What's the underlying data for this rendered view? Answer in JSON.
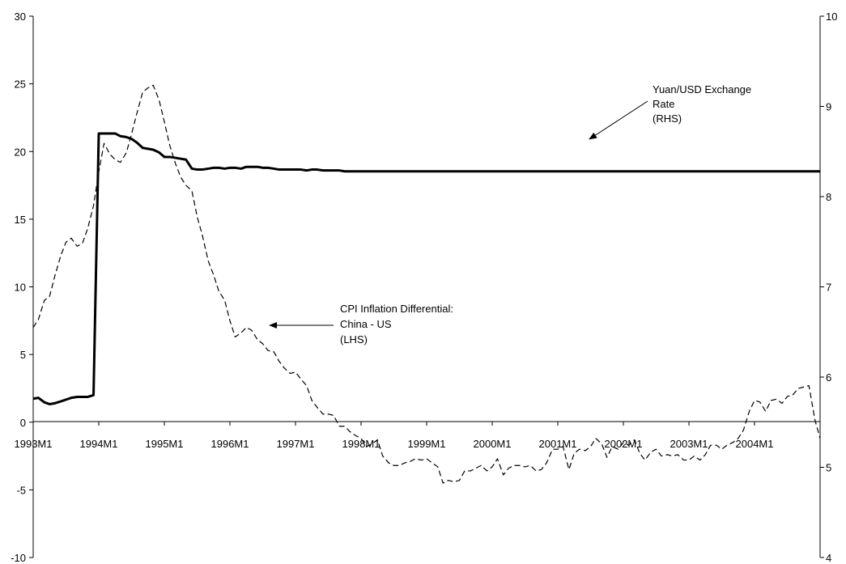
{
  "chart_data": {
    "type": "line",
    "title": "",
    "xlabel": "",
    "ylabel_left": "",
    "ylabel_right": "",
    "x_range": [
      1993.0,
      2005.0
    ],
    "x_ticks": [
      {
        "label": "1993M1",
        "x": 1993
      },
      {
        "label": "1994M1",
        "x": 1994
      },
      {
        "label": "1995M1",
        "x": 1995
      },
      {
        "label": "1996M1",
        "x": 1996
      },
      {
        "label": "1997M1",
        "x": 1997
      },
      {
        "label": "1998M1",
        "x": 1998
      },
      {
        "label": "1999M1",
        "x": 1999
      },
      {
        "label": "2000M1",
        "x": 2000
      },
      {
        "label": "2001M1",
        "x": 2001
      },
      {
        "label": "2002M1",
        "x": 2002
      },
      {
        "label": "2003M1",
        "x": 2003
      },
      {
        "label": "2004M1",
        "x": 2004
      }
    ],
    "y_left": {
      "range": [
        -10,
        30
      ],
      "ticks": [
        -10,
        -5,
        0,
        5,
        10,
        15,
        20,
        25,
        30
      ]
    },
    "y_right": {
      "range": [
        4,
        10
      ],
      "ticks": [
        4,
        5,
        6,
        7,
        8,
        9,
        10
      ]
    },
    "grid": false,
    "series": [
      {
        "axis": "left",
        "style": "dashed",
        "color": "#000000",
        "points": [
          [
            1993.0,
            7.0
          ],
          [
            1993.08,
            7.6
          ],
          [
            1993.17,
            9.0
          ],
          [
            1993.25,
            9.3
          ],
          [
            1993.33,
            10.8
          ],
          [
            1993.42,
            12.3
          ],
          [
            1993.5,
            13.3
          ],
          [
            1993.58,
            13.6
          ],
          [
            1993.67,
            13.0
          ],
          [
            1993.75,
            13.2
          ],
          [
            1993.83,
            14.3
          ],
          [
            1993.92,
            16.0
          ],
          [
            1994.0,
            18.5
          ],
          [
            1994.08,
            20.6
          ],
          [
            1994.17,
            19.8
          ],
          [
            1994.25,
            19.4
          ],
          [
            1994.33,
            19.2
          ],
          [
            1994.42,
            19.9
          ],
          [
            1994.5,
            21.3
          ],
          [
            1994.58,
            22.8
          ],
          [
            1994.67,
            24.4
          ],
          [
            1994.75,
            24.7
          ],
          [
            1994.83,
            24.9
          ],
          [
            1994.92,
            23.8
          ],
          [
            1995.0,
            22.2
          ],
          [
            1995.08,
            20.5
          ],
          [
            1995.17,
            19.1
          ],
          [
            1995.25,
            18.1
          ],
          [
            1995.33,
            17.5
          ],
          [
            1995.42,
            17.1
          ],
          [
            1995.5,
            15.2
          ],
          [
            1995.58,
            13.8
          ],
          [
            1995.67,
            11.9
          ],
          [
            1995.75,
            10.9
          ],
          [
            1995.83,
            9.7
          ],
          [
            1995.92,
            9.0
          ],
          [
            1996.0,
            7.5
          ],
          [
            1996.08,
            6.3
          ],
          [
            1996.17,
            6.6
          ],
          [
            1996.25,
            7.0
          ],
          [
            1996.33,
            6.8
          ],
          [
            1996.42,
            6.1
          ],
          [
            1996.5,
            5.8
          ],
          [
            1996.58,
            5.3
          ],
          [
            1996.67,
            5.2
          ],
          [
            1996.75,
            4.5
          ],
          [
            1996.83,
            4.0
          ],
          [
            1996.92,
            3.6
          ],
          [
            1997.0,
            3.7
          ],
          [
            1997.08,
            3.2
          ],
          [
            1997.17,
            2.7
          ],
          [
            1997.25,
            1.6
          ],
          [
            1997.33,
            1.1
          ],
          [
            1997.42,
            0.6
          ],
          [
            1997.5,
            0.6
          ],
          [
            1997.58,
            0.5
          ],
          [
            1997.67,
            -0.3
          ],
          [
            1997.75,
            -0.3
          ],
          [
            1997.83,
            -0.7
          ],
          [
            1997.92,
            -1.0
          ],
          [
            1998.0,
            -1.2
          ],
          [
            1998.08,
            -1.8
          ],
          [
            1998.17,
            -1.6
          ],
          [
            1998.25,
            -1.3
          ],
          [
            1998.33,
            -2.5
          ],
          [
            1998.42,
            -3.0
          ],
          [
            1998.5,
            -3.2
          ],
          [
            1998.58,
            -3.2
          ],
          [
            1998.67,
            -3.0
          ],
          [
            1998.75,
            -2.9
          ],
          [
            1998.83,
            -2.7
          ],
          [
            1998.92,
            -2.8
          ],
          [
            1999.0,
            -2.7
          ],
          [
            1999.08,
            -3.0
          ],
          [
            1999.17,
            -3.3
          ],
          [
            1999.25,
            -4.5
          ],
          [
            1999.33,
            -4.3
          ],
          [
            1999.42,
            -4.4
          ],
          [
            1999.5,
            -4.3
          ],
          [
            1999.58,
            -3.6
          ],
          [
            1999.67,
            -3.6
          ],
          [
            1999.75,
            -3.4
          ],
          [
            1999.83,
            -3.2
          ],
          [
            1999.92,
            -3.6
          ],
          [
            2000.0,
            -3.3
          ],
          [
            2000.08,
            -2.7
          ],
          [
            2000.17,
            -3.9
          ],
          [
            2000.25,
            -3.4
          ],
          [
            2000.33,
            -3.2
          ],
          [
            2000.42,
            -3.2
          ],
          [
            2000.5,
            -3.3
          ],
          [
            2000.58,
            -3.2
          ],
          [
            2000.67,
            -3.6
          ],
          [
            2000.75,
            -3.5
          ],
          [
            2000.83,
            -3.0
          ],
          [
            2000.92,
            -2.0
          ],
          [
            2001.0,
            -2.0
          ],
          [
            2001.08,
            -1.8
          ],
          [
            2001.17,
            -3.5
          ],
          [
            2001.25,
            -2.3
          ],
          [
            2001.33,
            -2.0
          ],
          [
            2001.42,
            -2.1
          ],
          [
            2001.5,
            -1.8
          ],
          [
            2001.58,
            -1.2
          ],
          [
            2001.67,
            -1.6
          ],
          [
            2001.75,
            -2.6
          ],
          [
            2001.83,
            -1.8
          ],
          [
            2001.92,
            -2.0
          ],
          [
            2002.0,
            -1.5
          ],
          [
            2002.08,
            -1.7
          ],
          [
            2002.17,
            -1.3
          ],
          [
            2002.25,
            -2.3
          ],
          [
            2002.33,
            -2.8
          ],
          [
            2002.42,
            -2.2
          ],
          [
            2002.5,
            -2.0
          ],
          [
            2002.58,
            -2.5
          ],
          [
            2002.67,
            -2.4
          ],
          [
            2002.75,
            -2.5
          ],
          [
            2002.83,
            -2.4
          ],
          [
            2002.92,
            -2.8
          ],
          [
            2003.0,
            -2.8
          ],
          [
            2003.08,
            -2.5
          ],
          [
            2003.17,
            -2.8
          ],
          [
            2003.25,
            -2.4
          ],
          [
            2003.33,
            -1.7
          ],
          [
            2003.42,
            -1.7
          ],
          [
            2003.5,
            -2.0
          ],
          [
            2003.58,
            -1.7
          ],
          [
            2003.67,
            -1.5
          ],
          [
            2003.75,
            -1.2
          ],
          [
            2003.83,
            -0.6
          ],
          [
            2003.92,
            0.8
          ],
          [
            2004.0,
            1.6
          ],
          [
            2004.08,
            1.5
          ],
          [
            2004.17,
            0.8
          ],
          [
            2004.25,
            1.6
          ],
          [
            2004.33,
            1.7
          ],
          [
            2004.42,
            1.4
          ],
          [
            2004.5,
            1.9
          ],
          [
            2004.58,
            2.0
          ],
          [
            2004.67,
            2.5
          ],
          [
            2004.75,
            2.6
          ],
          [
            2004.83,
            2.7
          ],
          [
            2004.92,
            0.2
          ],
          [
            2005.0,
            -1.2
          ]
        ]
      },
      {
        "axis": "right",
        "style": "solid",
        "color": "#000000",
        "points": [
          [
            1993.0,
            5.76
          ],
          [
            1993.08,
            5.77
          ],
          [
            1993.17,
            5.72
          ],
          [
            1993.25,
            5.7
          ],
          [
            1993.33,
            5.71
          ],
          [
            1993.42,
            5.73
          ],
          [
            1993.5,
            5.75
          ],
          [
            1993.58,
            5.77
          ],
          [
            1993.67,
            5.78
          ],
          [
            1993.75,
            5.78
          ],
          [
            1993.83,
            5.78
          ],
          [
            1993.92,
            5.8
          ],
          [
            1994.0,
            8.7
          ],
          [
            1994.08,
            8.7
          ],
          [
            1994.17,
            8.7
          ],
          [
            1994.25,
            8.7
          ],
          [
            1994.33,
            8.67
          ],
          [
            1994.42,
            8.66
          ],
          [
            1994.5,
            8.64
          ],
          [
            1994.58,
            8.6
          ],
          [
            1994.67,
            8.54
          ],
          [
            1994.75,
            8.53
          ],
          [
            1994.83,
            8.52
          ],
          [
            1994.92,
            8.49
          ],
          [
            1995.0,
            8.44
          ],
          [
            1995.08,
            8.44
          ],
          [
            1995.17,
            8.43
          ],
          [
            1995.25,
            8.42
          ],
          [
            1995.33,
            8.41
          ],
          [
            1995.42,
            8.31
          ],
          [
            1995.5,
            8.3
          ],
          [
            1995.58,
            8.3
          ],
          [
            1995.67,
            8.31
          ],
          [
            1995.75,
            8.32
          ],
          [
            1995.83,
            8.32
          ],
          [
            1995.92,
            8.31
          ],
          [
            1996.0,
            8.32
          ],
          [
            1996.08,
            8.32
          ],
          [
            1996.17,
            8.31
          ],
          [
            1996.25,
            8.33
          ],
          [
            1996.33,
            8.33
          ],
          [
            1996.42,
            8.33
          ],
          [
            1996.5,
            8.32
          ],
          [
            1996.58,
            8.32
          ],
          [
            1996.67,
            8.31
          ],
          [
            1996.75,
            8.3
          ],
          [
            1996.83,
            8.3
          ],
          [
            1996.92,
            8.3
          ],
          [
            1997.0,
            8.3
          ],
          [
            1997.08,
            8.3
          ],
          [
            1997.17,
            8.29
          ],
          [
            1997.25,
            8.3
          ],
          [
            1997.33,
            8.3
          ],
          [
            1997.42,
            8.29
          ],
          [
            1997.5,
            8.29
          ],
          [
            1997.58,
            8.29
          ],
          [
            1997.67,
            8.29
          ],
          [
            1997.75,
            8.28
          ],
          [
            1997.83,
            8.28
          ],
          [
            1998.0,
            8.28
          ],
          [
            2000.0,
            8.28
          ],
          [
            2002.0,
            8.28
          ],
          [
            2004.0,
            8.28
          ],
          [
            2005.0,
            8.28
          ]
        ]
      }
    ],
    "annotations": [
      {
        "lines": [
          "Yuan/USD Exchange",
          "Rate",
          "(RHS)"
        ]
      },
      {
        "lines": [
          "CPI Inflation Differential:",
          "China - US",
          "(LHS)"
        ]
      }
    ]
  }
}
